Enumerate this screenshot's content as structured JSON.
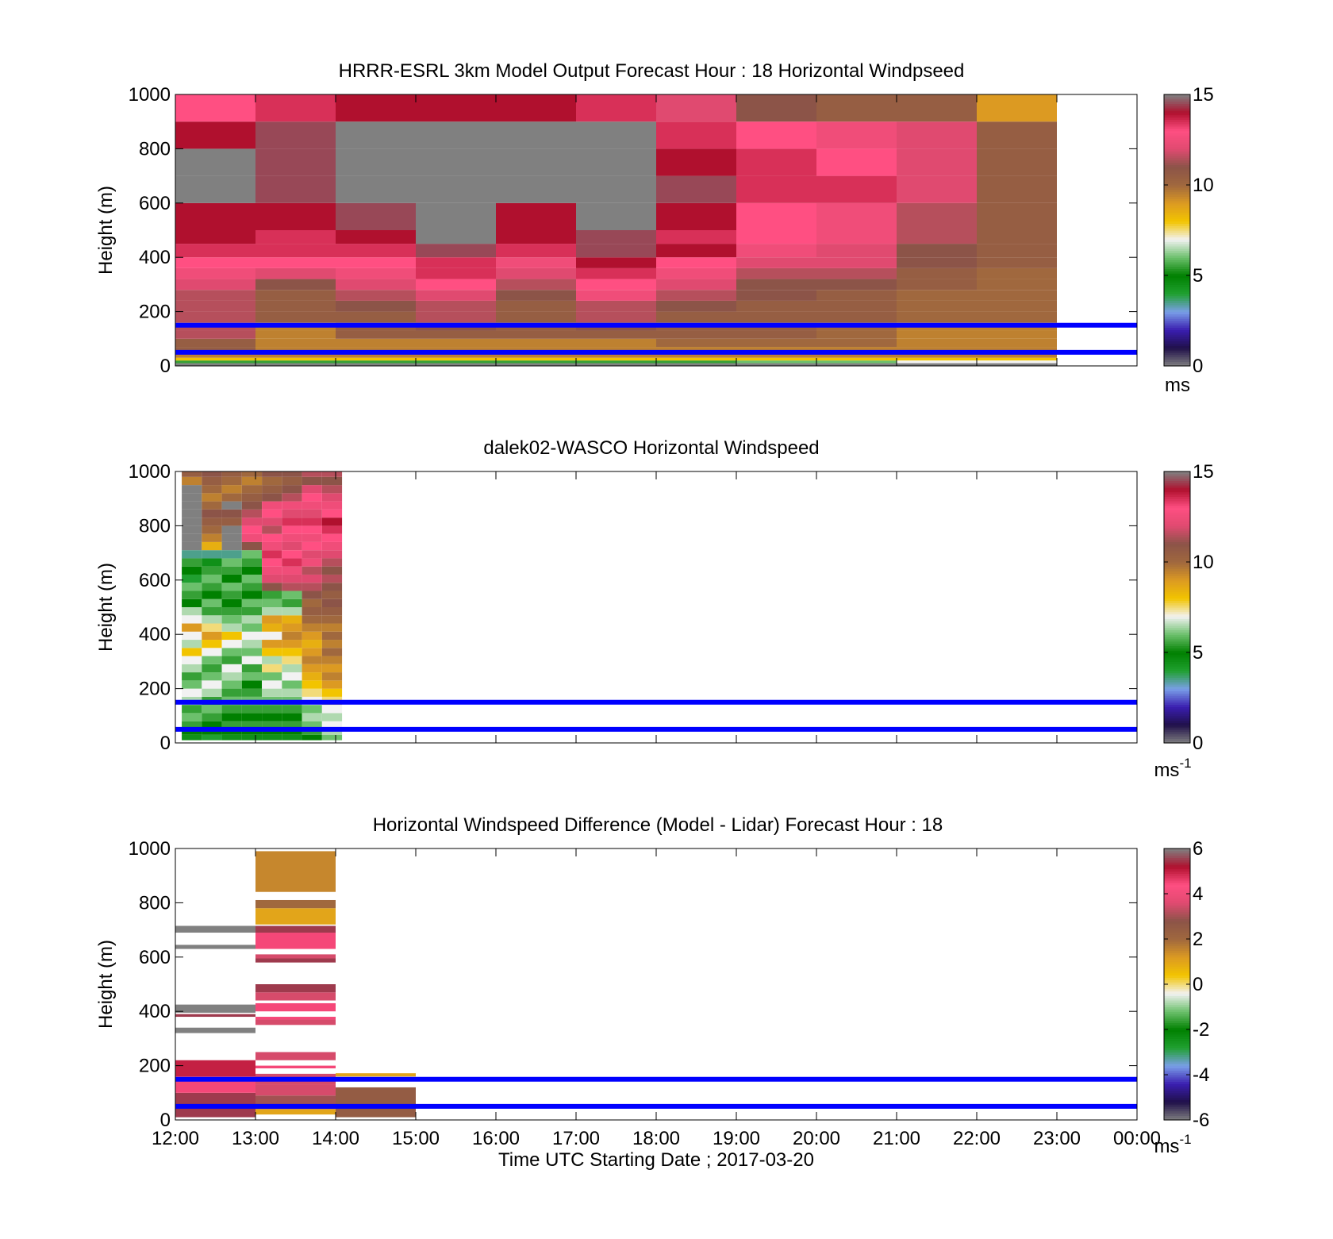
{
  "colors": {
    "hline": "#0000ff",
    "missing": "#808080",
    "speed_stops": [
      "#808080",
      "#20104a",
      "#3a1eb0",
      "#7a9fe8",
      "#20a030",
      "#008000",
      "#6cc06c",
      "#f2f2f2",
      "#f2c400",
      "#dc9a22",
      "#a0683e",
      "#8c5448",
      "#e04a70",
      "#ff4f82",
      "#b0102e",
      "#808080"
    ],
    "diff_stops": [
      "#808080",
      "#20104a",
      "#3a1eb0",
      "#7a9fe8",
      "#20a030",
      "#008000",
      "#6cc06c",
      "#f2f2f2",
      "#f2c400",
      "#dc9a22",
      "#a0683e",
      "#8c5448",
      "#e04a70",
      "#ff4f82",
      "#b0102e",
      "#808080"
    ]
  },
  "x_tick_labels": [
    "12:00",
    "13:00",
    "14:00",
    "15:00",
    "16:00",
    "17:00",
    "18:00",
    "19:00",
    "20:00",
    "21:00",
    "22:00",
    "23:00",
    "00:00"
  ],
  "xlabel": "Time UTC  Starting Date ; 2017-03-20",
  "chart_data": [
    {
      "type": "heatmap",
      "title": "HRRR-ESRL 3km Model Output   Forecast Hour : 18 Horizontal Windpseed",
      "ylabel": "Height (m)",
      "ylim": [
        0,
        1000
      ],
      "y_ticks": [
        0,
        200,
        400,
        600,
        800,
        1000
      ],
      "x_hours": [
        12,
        24
      ],
      "colorbar": {
        "min": 0,
        "max": 15,
        "ticks": [
          0,
          5,
          10,
          15
        ],
        "unit": "ms",
        "unit_sup": ""
      },
      "hlines": [
        50,
        150
      ],
      "x_bin_hours": 1,
      "y_edges": [
        0,
        10,
        20,
        30,
        50,
        70,
        100,
        130,
        160,
        200,
        240,
        280,
        320,
        360,
        400,
        450,
        500,
        600,
        700,
        800,
        900,
        1000
      ],
      "columns": [
        {
          "x": 12,
          "values": [
            null,
            5.5,
            8,
            9.5,
            10.5,
            10.5,
            11.5,
            11.5,
            11.5,
            11.5,
            11.5,
            12,
            12.5,
            13,
            13.5,
            14,
            14,
            null,
            15,
            14,
            13
          ]
        },
        {
          "x": 13,
          "values": [
            null,
            5.5,
            8,
            9.5,
            9.5,
            9.5,
            9.5,
            9.5,
            10.5,
            10.5,
            10.5,
            11,
            12,
            13,
            13.5,
            13.5,
            14,
            14.5,
            14.5,
            14.5,
            13.5
          ]
        },
        {
          "x": 14,
          "values": [
            null,
            5.5,
            8,
            9.5,
            9.5,
            9.5,
            10.5,
            10.5,
            10.5,
            11,
            11.5,
            12,
            12.5,
            13,
            13.5,
            14,
            14.5,
            null,
            null,
            null,
            14
          ]
        },
        {
          "x": 15,
          "values": [
            null,
            5.5,
            8,
            9.5,
            9.5,
            9.5,
            10.5,
            11,
            11.5,
            11.5,
            12,
            13,
            13.5,
            13.5,
            14.5,
            15,
            null,
            null,
            null,
            null,
            14
          ]
        },
        {
          "x": 16,
          "values": [
            null,
            5.5,
            8,
            9.5,
            9.5,
            9.5,
            10.5,
            10.5,
            10.5,
            10.5,
            11,
            11.5,
            12,
            12.5,
            13.5,
            14,
            14,
            null,
            null,
            null,
            14
          ]
        },
        {
          "x": 17,
          "values": [
            null,
            5.5,
            8,
            9.5,
            9.5,
            9.5,
            10.5,
            11,
            11.5,
            11.5,
            12.5,
            13,
            13.5,
            14,
            14.5,
            14.5,
            15,
            null,
            null,
            null,
            13.5
          ]
        },
        {
          "x": 18,
          "values": [
            null,
            5.5,
            8,
            9.5,
            9.5,
            10,
            10.5,
            10.5,
            10.5,
            11,
            11.5,
            12,
            12.5,
            13,
            14,
            13.5,
            14,
            14.5,
            14,
            13.5,
            12
          ]
        },
        {
          "x": 19,
          "values": [
            null,
            6,
            8,
            9.5,
            9.5,
            10,
            10.5,
            10.5,
            10.5,
            10.5,
            11,
            11,
            11.5,
            12,
            12.5,
            13,
            13,
            13.5,
            13.5,
            13,
            11
          ]
        },
        {
          "x": 20,
          "values": [
            null,
            6,
            8,
            9.5,
            9.5,
            10,
            10,
            10,
            10.5,
            10.5,
            10.5,
            11,
            11.5,
            12,
            12,
            12.5,
            12.5,
            13.5,
            13,
            12.5,
            10.5
          ]
        },
        {
          "x": 21,
          "values": [
            null,
            7,
            8,
            9.5,
            9.5,
            9.5,
            9.5,
            9.5,
            10,
            10,
            10,
            10.5,
            10.5,
            11,
            11,
            11.5,
            11.5,
            12,
            12,
            12,
            10.5
          ]
        },
        {
          "x": 22,
          "values": [
            null,
            7,
            8,
            9.5,
            9.5,
            9.5,
            9.5,
            9.5,
            10,
            10,
            10,
            10,
            10,
            10.5,
            10.5,
            10.5,
            10.5,
            10.5,
            10.5,
            10.5,
            9
          ]
        }
      ]
    },
    {
      "type": "heatmap",
      "title": "dalek02-WASCO  Horizontal Windspeed",
      "ylabel": "Height (m)",
      "ylim": [
        0,
        1000
      ],
      "y_ticks": [
        0,
        200,
        400,
        600,
        800,
        1000
      ],
      "x_hours": [
        12,
        24
      ],
      "colorbar": {
        "min": 0,
        "max": 15,
        "ticks": [
          0,
          5,
          10,
          15
        ],
        "unit": "ms",
        "unit_sup": "-1"
      },
      "hlines": [
        50,
        150
      ],
      "x_bin_hours": 0.25,
      "y_edges": [
        10,
        30,
        50,
        80,
        110,
        140,
        170,
        200,
        230,
        260,
        290,
        320,
        350,
        380,
        410,
        440,
        470,
        500,
        530,
        560,
        590,
        620,
        650,
        680,
        710,
        740,
        770,
        800,
        830,
        860,
        890,
        920,
        950,
        980,
        1000
      ],
      "columns": [
        {
          "x": 12.08,
          "values": [
            4.5,
            5,
            5.5,
            6,
            5.5,
            6.5,
            7,
            6,
            5.5,
            6.5,
            7,
            8,
            6.5,
            7,
            9,
            7,
            6.5,
            5,
            5.5,
            6,
            4,
            5,
            5.5,
            3.5,
            null,
            null,
            null,
            null,
            null,
            null,
            null,
            null,
            9.5,
            10.5
          ]
        },
        {
          "x": 12.33,
          "values": [
            4,
            5,
            5,
            5.5,
            6,
            5.5,
            6.5,
            7,
            6,
            5.5,
            6,
            7,
            8,
            9,
            7.5,
            6.5,
            5.5,
            6,
            5,
            5.5,
            6,
            5.5,
            4.5,
            3.5,
            8.5,
            9.5,
            10,
            10.5,
            11,
            10,
            9.5,
            10,
            10.5,
            11
          ]
        },
        {
          "x": 12.58,
          "values": [
            4.5,
            5,
            5.5,
            5,
            5.5,
            6,
            5.5,
            6,
            6.5,
            7,
            5.5,
            6,
            7,
            8,
            6.5,
            6,
            5.5,
            5,
            5.5,
            6,
            5,
            5.5,
            6,
            3.5,
            null,
            null,
            null,
            10.5,
            11,
            null,
            10,
            9.5,
            10,
            10.5
          ]
        },
        {
          "x": 12.83,
          "values": [
            4.5,
            5,
            5.5,
            5,
            5.5,
            6,
            5.5,
            5,
            6,
            5.5,
            7,
            6,
            6.5,
            7,
            6,
            6.5,
            5.5,
            6,
            5,
            5.5,
            6,
            5,
            5.5,
            6,
            11,
            12.5,
            13,
            12,
            11.5,
            11,
            10.5,
            10,
            9.5,
            10
          ]
        },
        {
          "x": 13.08,
          "values": [
            4.5,
            5,
            5.5,
            5,
            5.5,
            6,
            6.5,
            7,
            6,
            7.5,
            6.5,
            8,
            9,
            7,
            8.5,
            9,
            6.5,
            6,
            5.5,
            11,
            12,
            12.5,
            13,
            13.5,
            12.5,
            13,
            11.5,
            12,
            13,
            12.5,
            11,
            10.5,
            10,
            11
          ]
        },
        {
          "x": 13.33,
          "values": [
            4.5,
            5,
            5.5,
            5,
            5.5,
            6,
            6.5,
            6,
            7,
            6.5,
            7.5,
            8,
            9,
            9.5,
            9,
            8.5,
            6.5,
            5.5,
            6,
            11.5,
            12,
            12.5,
            13.5,
            13,
            12,
            12.5,
            13,
            13.5,
            12,
            12.5,
            11.5,
            11,
            10.5,
            11
          ]
        },
        {
          "x": 13.58,
          "values": [
            5,
            5.5,
            6,
            6.5,
            6,
            7,
            7.5,
            8,
            8.5,
            9,
            9.5,
            9,
            8.5,
            9,
            9.5,
            10,
            10.5,
            10,
            11,
            11.5,
            12,
            11.5,
            12.5,
            12,
            13,
            12.5,
            13,
            13.5,
            12,
            12.5,
            13,
            12,
            11,
            11.5
          ]
        },
        {
          "x": 13.83,
          "values": [
            6,
            6.5,
            7,
            6.5,
            7,
            7.5,
            8,
            9,
            9.5,
            9,
            9.5,
            10,
            9.5,
            10,
            9.5,
            10,
            10.5,
            11,
            10.5,
            11,
            11.5,
            11,
            11.5,
            12,
            12.5,
            13,
            13.5,
            14,
            13,
            12.5,
            12,
            11.5,
            11,
            11.5
          ]
        }
      ]
    },
    {
      "type": "heatmap",
      "title": "Horizontal Windspeed Difference (Model - Lidar) Forecast Hour : 18",
      "ylabel": "Height (m)",
      "ylim": [
        0,
        1000
      ],
      "y_ticks": [
        0,
        200,
        400,
        600,
        800,
        1000
      ],
      "x_hours": [
        12,
        24
      ],
      "colorbar": {
        "min": -6,
        "max": 6,
        "ticks": [
          -6,
          -4,
          -2,
          0,
          2,
          4,
          6
        ],
        "unit": "ms",
        "unit_sup": "-1"
      },
      "hlines": [
        50,
        150
      ],
      "bands": [
        {
          "x0": 12,
          "x1": 13,
          "y0": 10,
          "y1": 100,
          "v": 5.5
        },
        {
          "x0": 12,
          "x1": 13,
          "y0": 100,
          "y1": 160,
          "v": 4.5
        },
        {
          "x0": 12,
          "x1": 13,
          "y0": 160,
          "y1": 220,
          "v": 5
        },
        {
          "x0": 12,
          "x1": 13,
          "y0": 320,
          "y1": 340,
          "v": 7
        },
        {
          "x0": 12,
          "x1": 13,
          "y0": 380,
          "y1": 390,
          "v": 5.5
        },
        {
          "x0": 12,
          "x1": 13,
          "y0": 395,
          "y1": 425,
          "v": 7
        },
        {
          "x0": 12,
          "x1": 13,
          "y0": 630,
          "y1": 645,
          "v": 7
        },
        {
          "x0": 12,
          "x1": 13,
          "y0": 690,
          "y1": 715,
          "v": 7
        },
        {
          "x0": 13,
          "x1": 14,
          "y0": 20,
          "y1": 40,
          "v": 1
        },
        {
          "x0": 13,
          "x1": 14,
          "y0": 40,
          "y1": 90,
          "v": 3
        },
        {
          "x0": 13,
          "x1": 14,
          "y0": 90,
          "y1": 130,
          "v": 3.5
        },
        {
          "x0": 13,
          "x1": 14,
          "y0": 130,
          "y1": 170,
          "v": 3.5
        },
        {
          "x0": 13,
          "x1": 14,
          "y0": 190,
          "y1": 200,
          "v": 4.5
        },
        {
          "x0": 13,
          "x1": 14,
          "y0": 220,
          "y1": 250,
          "v": 3.5
        },
        {
          "x0": 13,
          "x1": 14,
          "y0": 350,
          "y1": 370,
          "v": 3.5
        },
        {
          "x0": 13,
          "x1": 14,
          "y0": 370,
          "y1": 380,
          "v": 4.5
        },
        {
          "x0": 13,
          "x1": 14,
          "y0": 400,
          "y1": 430,
          "v": 4.5
        },
        {
          "x0": 13,
          "x1": 14,
          "y0": 440,
          "y1": 470,
          "v": 3.5
        },
        {
          "x0": 13,
          "x1": 14,
          "y0": 470,
          "y1": 500,
          "v": 5.5
        },
        {
          "x0": 13,
          "x1": 14,
          "y0": 580,
          "y1": 595,
          "v": 5.5
        },
        {
          "x0": 13,
          "x1": 14,
          "y0": 595,
          "y1": 610,
          "v": 3.5
        },
        {
          "x0": 13,
          "x1": 14,
          "y0": 630,
          "y1": 690,
          "v": 4.5
        },
        {
          "x0": 13,
          "x1": 14,
          "y0": 690,
          "y1": 715,
          "v": 5.5
        },
        {
          "x0": 13,
          "x1": 14,
          "y0": 720,
          "y1": 780,
          "v": 1
        },
        {
          "x0": 13,
          "x1": 14,
          "y0": 780,
          "y1": 810,
          "v": 2
        },
        {
          "x0": 13,
          "x1": 14,
          "y0": 840,
          "y1": 990,
          "v": 1.5
        },
        {
          "x0": 14,
          "x1": 15,
          "y0": 10,
          "y1": 120,
          "v": 2.5
        },
        {
          "x0": 14,
          "x1": 15,
          "y0": 160,
          "y1": 172,
          "v": 1
        }
      ]
    }
  ]
}
